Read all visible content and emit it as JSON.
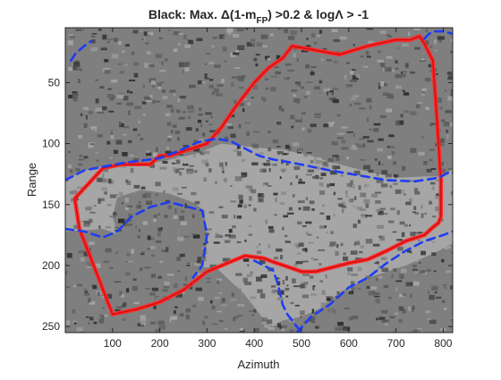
{
  "chart_data": {
    "type": "heatmap",
    "title": {
      "prefix": "Black: Max. Δ(1-m",
      "subscript": "FP",
      "suffix": ") >0.2 & logΛ > -1"
    },
    "xlabel": "Azimuth",
    "ylabel": "Range",
    "xlim": [
      0,
      820
    ],
    "ylim": [
      5,
      255
    ],
    "y_reversed": true,
    "xticks": [
      100,
      200,
      300,
      400,
      500,
      600,
      700,
      800
    ],
    "yticks": [
      50,
      100,
      150,
      200,
      250
    ],
    "grid": false,
    "colors": {
      "background_light": "#a6a6a6",
      "background_mid": "#7f7f7f",
      "background_dark": "#595959",
      "black": "#2d2d2d",
      "red": "#ff2a2a",
      "red_inner": "#c81010",
      "blue": "#1f3df2"
    },
    "regions": [
      {
        "name": "light-band",
        "shade": "background_light",
        "x": [
          0,
          40,
          100,
          200,
          280,
          330,
          400,
          460,
          520,
          560,
          600,
          650,
          700,
          760,
          800,
          820,
          820,
          780,
          720,
          640,
          580,
          540,
          500,
          460,
          440,
          420,
          380,
          320,
          240,
          180,
          140,
          80,
          0
        ],
        "y": [
          130,
          122,
          117,
          115,
          108,
          100,
          103,
          105,
          110,
          115,
          119,
          124,
          128,
          127,
          127,
          120,
          182,
          190,
          200,
          210,
          222,
          235,
          242,
          245,
          250,
          244,
          224,
          202,
          200,
          190,
          178,
          170,
          172
        ]
      },
      {
        "name": "bottom-left-block",
        "shade": "background_mid",
        "x": [
          110,
          160,
          220,
          270,
          295,
          300,
          280,
          240,
          200,
          160,
          120,
          100
        ],
        "y": [
          144,
          138,
          141,
          148,
          155,
          190,
          205,
          212,
          210,
          200,
          185,
          160
        ]
      }
    ],
    "series": [
      {
        "name": "red contour",
        "style": "solid",
        "color": "red",
        "x": [
          20,
          80,
          120,
          180,
          200,
          220,
          300,
          330,
          360,
          400,
          430,
          460,
          470,
          480,
          580,
          640,
          700,
          730,
          750,
          760,
          778,
          785,
          790,
          795,
          795,
          790,
          780,
          760,
          720,
          680,
          640,
          600,
          560,
          530,
          500,
          470,
          440,
          420,
          400,
          380,
          300,
          250,
          200,
          150,
          100,
          90,
          70,
          50,
          30,
          20
        ],
        "y": [
          145,
          120,
          117,
          117,
          110,
          110,
          100,
          87,
          70,
          50,
          38,
          30,
          25,
          20,
          27,
          20,
          15,
          15,
          12,
          18,
          32,
          70,
          100,
          130,
          160,
          165,
          168,
          175,
          180,
          188,
          195,
          198,
          202,
          205,
          205,
          201,
          197,
          194,
          193,
          192,
          205,
          220,
          230,
          236,
          240,
          230,
          210,
          190,
          170,
          145
        ]
      },
      {
        "name": "blue contour upper",
        "style": "dashed",
        "color": "blue",
        "x": [
          0,
          40,
          120,
          200,
          240,
          280,
          320,
          350,
          380,
          410,
          440,
          470,
          510,
          560,
          620,
          680,
          740,
          790,
          820
        ],
        "y": [
          130,
          122,
          116,
          112,
          106,
          99,
          96,
          98,
          104,
          110,
          113,
          115,
          118,
          122,
          126,
          130,
          131,
          128,
          122
        ]
      },
      {
        "name": "blue contour lower left",
        "style": "dashed",
        "color": "blue",
        "x": [
          0,
          40,
          80,
          110,
          140,
          180,
          220,
          260,
          290,
          300,
          290,
          270
        ],
        "y": [
          170,
          172,
          177,
          172,
          160,
          152,
          148,
          152,
          155,
          175,
          200,
          210
        ]
      },
      {
        "name": "blue contour bottom",
        "style": "dashed",
        "color": "blue",
        "x": [
          400,
          420,
          440,
          450,
          460,
          470,
          480,
          490,
          500
        ],
        "y": [
          196,
          200,
          204,
          215,
          232,
          240,
          245,
          250,
          255
        ]
      },
      {
        "name": "blue contour lower right",
        "style": "dashed",
        "color": "blue",
        "x": [
          490,
          520,
          560,
          600,
          640,
          680,
          720,
          760,
          800,
          820
        ],
        "y": [
          255,
          242,
          232,
          218,
          210,
          198,
          188,
          180,
          175,
          172
        ]
      },
      {
        "name": "blue contour top right",
        "style": "dashed",
        "color": "blue",
        "x": [
          760,
          770,
          780,
          800,
          820
        ],
        "y": [
          14,
          10,
          8,
          8,
          10
        ]
      },
      {
        "name": "blue contour top left",
        "style": "dashed",
        "color": "blue",
        "x": [
          12,
          22,
          40,
          55
        ],
        "y": [
          32,
          26,
          20,
          16
        ]
      }
    ]
  }
}
